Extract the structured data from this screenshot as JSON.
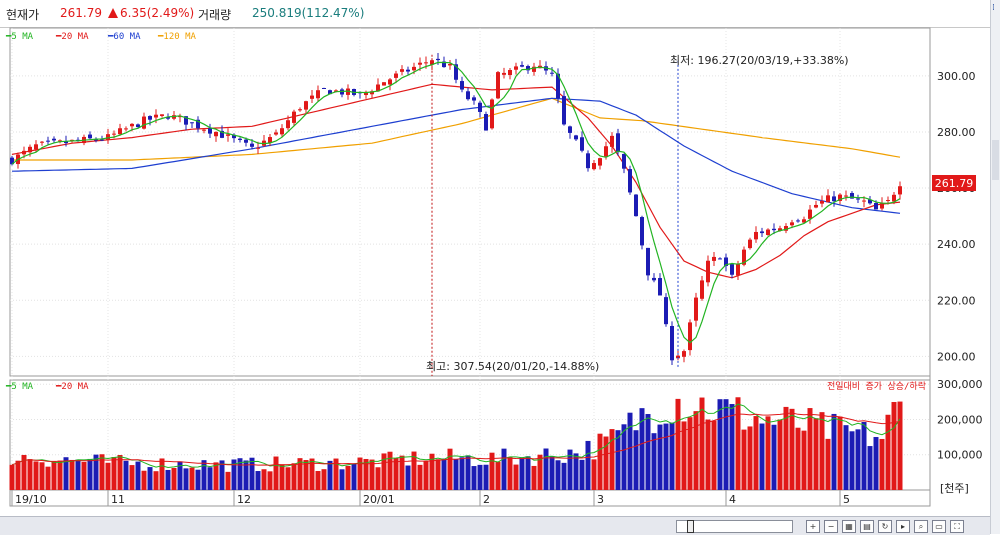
{
  "header": {
    "price_label": "현재가",
    "price_value": "261.79",
    "change_value": "6.35(2.49%)",
    "volume_label": "거래량",
    "volume_value": "250.819(112.47%)"
  },
  "colors": {
    "ma5": "#22b422",
    "ma20": "#e11919",
    "ma60": "#1e3fd0",
    "ma120": "#f0a000",
    "up": "#e11919",
    "down": "#1c1cb4",
    "price_tag_bg": "#e11919"
  },
  "toolbar_icons": [
    "zoom-in-icon",
    "zoom-out-icon",
    "grid-icon",
    "chart-icon",
    "refresh-icon",
    "play-icon",
    "search-icon",
    "window-icon",
    "fullscreen-icon"
  ],
  "chart_data": [
    {
      "type": "candlestick",
      "legend": [
        "5 MA",
        "20 MA",
        "60 MA",
        "120 MA"
      ],
      "y_axis": {
        "ticks": [
          "300.00",
          "280.00",
          "260.00",
          "240.00",
          "220.00",
          "200.00"
        ],
        "tick_values": [
          300,
          280,
          260,
          240,
          220,
          200
        ],
        "range": [
          193,
          311
        ]
      },
      "current_price_tag": "261.79",
      "annotations": {
        "high": {
          "text": "최고: 307.54(20/01/20,-14.88%)",
          "value": 307.54,
          "index": 70
        },
        "low": {
          "text": "최저: 196.27(20/03/19,+33.38%)",
          "value": 196.27,
          "index": 111
        }
      },
      "x_axis_labels": [
        {
          "text": "19/10",
          "index": 0
        },
        {
          "text": "11",
          "index": 16
        },
        {
          "text": "12",
          "index": 37
        },
        {
          "text": "20/01",
          "index": 58
        },
        {
          "text": "2",
          "index": 78
        },
        {
          "text": "3",
          "index": 97
        },
        {
          "text": "4",
          "index": 119
        },
        {
          "text": "5",
          "index": 138
        }
      ],
      "ohlc_keyframes": [
        [
          0,
          270
        ],
        [
          4,
          275
        ],
        [
          8,
          276
        ],
        [
          12,
          277
        ],
        [
          16,
          278
        ],
        [
          22,
          284
        ],
        [
          26,
          286
        ],
        [
          30,
          283
        ],
        [
          34,
          280
        ],
        [
          38,
          276
        ],
        [
          40,
          274
        ],
        [
          44,
          279
        ],
        [
          48,
          289
        ],
        [
          52,
          295
        ],
        [
          56,
          294
        ],
        [
          58,
          293
        ],
        [
          62,
          298
        ],
        [
          66,
          302
        ],
        [
          68,
          304
        ],
        [
          70,
          306
        ],
        [
          73,
          303
        ],
        [
          75,
          294
        ],
        [
          77,
          290
        ],
        [
          79,
          282
        ],
        [
          81,
          300
        ],
        [
          84,
          302
        ],
        [
          87,
          304
        ],
        [
          90,
          300
        ],
        [
          92,
          282
        ],
        [
          94,
          276
        ],
        [
          96,
          268
        ],
        [
          98,
          272
        ],
        [
          100,
          278
        ],
        [
          102,
          266
        ],
        [
          104,
          250
        ],
        [
          106,
          230
        ],
        [
          108,
          222
        ],
        [
          109,
          210
        ],
        [
          110,
          200
        ],
        [
          112,
          202
        ],
        [
          114,
          220
        ],
        [
          116,
          233
        ],
        [
          118,
          236
        ],
        [
          120,
          228
        ],
        [
          122,
          238
        ],
        [
          124,
          244
        ],
        [
          126,
          245
        ],
        [
          128,
          246
        ],
        [
          130,
          249
        ],
        [
          132,
          250
        ],
        [
          134,
          254
        ],
        [
          136,
          256
        ],
        [
          138,
          257
        ],
        [
          140,
          256
        ],
        [
          142,
          255
        ],
        [
          144,
          252
        ],
        [
          146,
          255
        ],
        [
          148,
          262
        ]
      ],
      "moving_averages": {
        "ma120": [
          [
            0,
            270
          ],
          [
            20,
            270
          ],
          [
            40,
            272
          ],
          [
            60,
            276
          ],
          [
            75,
            283
          ],
          [
            90,
            292
          ],
          [
            98,
            285
          ],
          [
            105,
            284
          ],
          [
            115,
            281
          ],
          [
            125,
            278
          ],
          [
            140,
            274
          ],
          [
            148,
            271
          ]
        ],
        "ma60": [
          [
            0,
            266
          ],
          [
            20,
            267
          ],
          [
            40,
            274
          ],
          [
            60,
            282
          ],
          [
            75,
            288
          ],
          [
            90,
            292
          ],
          [
            98,
            291
          ],
          [
            104,
            286
          ],
          [
            112,
            275
          ],
          [
            120,
            266
          ],
          [
            130,
            258
          ],
          [
            140,
            253
          ],
          [
            148,
            251
          ]
        ],
        "ma20": [
          [
            0,
            272
          ],
          [
            10,
            276
          ],
          [
            20,
            278
          ],
          [
            30,
            281
          ],
          [
            40,
            282
          ],
          [
            50,
            287
          ],
          [
            60,
            292
          ],
          [
            70,
            297
          ],
          [
            80,
            295
          ],
          [
            90,
            296
          ],
          [
            96,
            285
          ],
          [
            100,
            275
          ],
          [
            104,
            262
          ],
          [
            108,
            246
          ],
          [
            112,
            234
          ],
          [
            116,
            230
          ],
          [
            120,
            228
          ],
          [
            124,
            231
          ],
          [
            128,
            236
          ],
          [
            132,
            243
          ],
          [
            136,
            248
          ],
          [
            140,
            251
          ],
          [
            144,
            254
          ],
          [
            148,
            255
          ]
        ]
      }
    },
    {
      "type": "bar",
      "legend": [
        "5 MA",
        "20 MA"
      ],
      "right_label": "전일대비 증가 상승/하락",
      "y_axis": {
        "ticks": [
          "300,000",
          "200,000",
          "100,000"
        ],
        "tick_values": [
          300000,
          200000,
          100000
        ],
        "range": [
          0,
          312000
        ]
      },
      "unit_label": "[천주]",
      "volume_keyframes": [
        [
          0,
          95000
        ],
        [
          20,
          75000
        ],
        [
          40,
          72000
        ],
        [
          60,
          80000
        ],
        [
          70,
          92000
        ],
        [
          80,
          88000
        ],
        [
          90,
          100000
        ],
        [
          95,
          110000
        ],
        [
          100,
          140000
        ],
        [
          105,
          210000
        ],
        [
          110,
          260000
        ],
        [
          115,
          240000
        ],
        [
          120,
          220000
        ],
        [
          125,
          200000
        ],
        [
          130,
          190000
        ],
        [
          135,
          175000
        ],
        [
          140,
          160000
        ],
        [
          145,
          150000
        ],
        [
          148,
          250819
        ]
      ]
    }
  ]
}
